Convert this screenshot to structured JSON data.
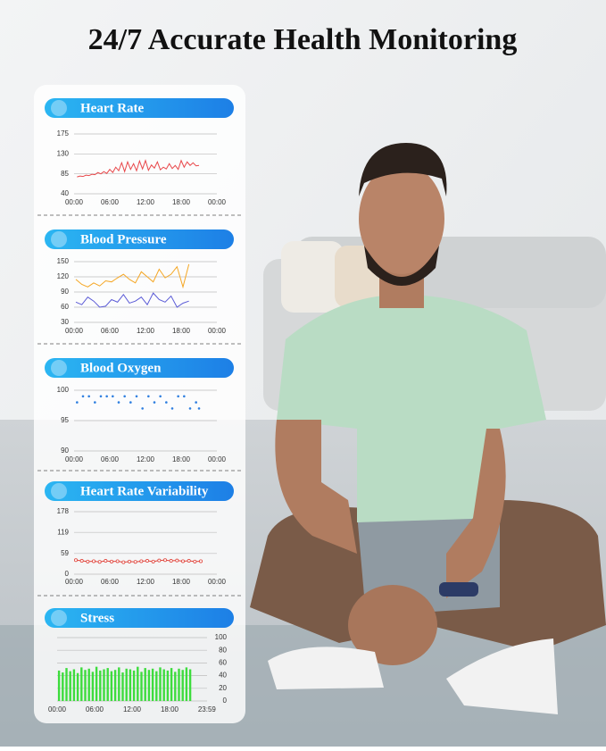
{
  "title": "24/7 Accurate Health Monitoring",
  "chart_data": [
    {
      "type": "line",
      "title": "Heart Rate",
      "xlim": [
        0,
        24
      ],
      "xticks": [
        {
          "value": 0,
          "label": "00:00"
        },
        {
          "value": 6,
          "label": "06:00"
        },
        {
          "value": 12,
          "label": "12:00"
        },
        {
          "value": 18,
          "label": "18:00"
        },
        {
          "value": 24,
          "label": "00:00"
        }
      ],
      "ylim": [
        40,
        175
      ],
      "yticks": [
        40,
        85,
        130,
        175
      ],
      "grid": true,
      "yaxis_side": "left",
      "markers": false,
      "x": [
        0.5,
        1,
        1.5,
        2,
        2.5,
        3,
        3.5,
        4,
        4.5,
        5,
        5.5,
        6,
        6.5,
        7,
        7.5,
        8,
        8.5,
        9,
        9.5,
        10,
        10.5,
        11,
        11.5,
        12,
        12.5,
        13,
        13.5,
        14,
        14.5,
        15,
        15.5,
        16,
        16.5,
        17,
        17.5,
        18,
        18.5,
        19,
        19.5,
        20,
        20.5,
        21
      ],
      "series": [
        {
          "color": "#e8474a",
          "values": [
            78,
            80,
            79,
            82,
            81,
            84,
            83,
            88,
            85,
            90,
            86,
            95,
            88,
            100,
            92,
            110,
            90,
            112,
            95,
            108,
            92,
            114,
            96,
            115,
            93,
            105,
            98,
            112,
            94,
            100,
            96,
            108,
            97,
            104,
            95,
            115,
            100,
            112,
            104,
            110,
            103,
            104
          ]
        }
      ]
    },
    {
      "type": "line",
      "title": "Blood Pressure",
      "xlim": [
        0,
        24
      ],
      "xticks": [
        {
          "value": 0,
          "label": "00:00"
        },
        {
          "value": 6,
          "label": "06:00"
        },
        {
          "value": 12,
          "label": "12:00"
        },
        {
          "value": 18,
          "label": "18:00"
        },
        {
          "value": 24,
          "label": "00:00"
        }
      ],
      "ylim": [
        30,
        150
      ],
      "yticks": [
        30,
        60,
        90,
        120,
        150
      ],
      "grid": true,
      "yaxis_side": "left",
      "markers": false,
      "x": [
        0.3,
        1.3,
        2.3,
        3.3,
        4.3,
        5.3,
        6.3,
        7.3,
        8.3,
        9.3,
        10.3,
        11.3,
        12.3,
        13.3,
        14.3,
        15.3,
        16.3,
        17.3,
        18.3,
        19.3
      ],
      "series": [
        {
          "color": "#f5a623",
          "values": [
            115,
            105,
            100,
            108,
            102,
            112,
            110,
            118,
            125,
            115,
            108,
            130,
            120,
            110,
            135,
            118,
            125,
            140,
            100,
            145
          ]
        },
        {
          "color": "#5b5bd6",
          "values": [
            70,
            65,
            80,
            72,
            60,
            62,
            75,
            70,
            85,
            68,
            72,
            80,
            65,
            88,
            75,
            70,
            82,
            60,
            68,
            72
          ]
        }
      ]
    },
    {
      "type": "scatter",
      "title": "Blood Oxygen",
      "xlim": [
        0,
        24
      ],
      "xticks": [
        {
          "value": 0,
          "label": "00:00"
        },
        {
          "value": 6,
          "label": "06:00"
        },
        {
          "value": 12,
          "label": "12:00"
        },
        {
          "value": 18,
          "label": "18:00"
        },
        {
          "value": 24,
          "label": "00:00"
        }
      ],
      "ylim": [
        90,
        100
      ],
      "yticks": [
        90,
        95,
        100
      ],
      "grid": true,
      "yaxis_side": "left",
      "markers": true,
      "x": [
        0.5,
        1.5,
        2.5,
        3.5,
        4.5,
        5.5,
        6.5,
        7.5,
        8.5,
        9.5,
        10.5,
        11.5,
        12.5,
        13.5,
        14.5,
        15.5,
        16.5,
        17.5,
        18.5,
        19.5,
        20.5,
        21
      ],
      "series": [
        {
          "color": "#2f7fe0",
          "values": [
            98,
            99,
            99,
            98,
            99,
            99,
            99,
            98,
            99,
            98,
            99,
            97,
            99,
            98,
            99,
            98,
            97,
            99,
            99,
            97,
            98,
            97
          ]
        }
      ]
    },
    {
      "type": "line",
      "title": "Heart Rate Variability",
      "xlim": [
        0,
        24
      ],
      "xticks": [
        {
          "value": 0,
          "label": "00:00"
        },
        {
          "value": 6,
          "label": "06:00"
        },
        {
          "value": 12,
          "label": "12:00"
        },
        {
          "value": 18,
          "label": "18:00"
        },
        {
          "value": 24,
          "label": "00:00"
        }
      ],
      "ylim": [
        0,
        178
      ],
      "yticks": [
        0,
        59,
        119,
        178
      ],
      "grid": true,
      "yaxis_side": "left",
      "markers": true,
      "x": [
        0.3,
        1.3,
        2.3,
        3.3,
        4.3,
        5.3,
        6.3,
        7.3,
        8.3,
        9.3,
        10.3,
        11.3,
        12.3,
        13.3,
        14.3,
        15.3,
        16.3,
        17.3,
        18.3,
        19.3,
        20.3,
        21.3
      ],
      "series": [
        {
          "color": "#e0453c",
          "values": [
            40,
            38,
            36,
            37,
            35,
            38,
            36,
            37,
            34,
            36,
            35,
            37,
            38,
            36,
            39,
            40,
            38,
            39,
            37,
            38,
            36,
            37
          ]
        }
      ]
    },
    {
      "type": "bar",
      "title": "Stress",
      "xlim": [
        0,
        24
      ],
      "xticks": [
        {
          "value": 0,
          "label": "00:00"
        },
        {
          "value": 6,
          "label": "06:00"
        },
        {
          "value": 12,
          "label": "12:00"
        },
        {
          "value": 18,
          "label": "18:00"
        },
        {
          "value": 23.98,
          "label": "23:59"
        }
      ],
      "ylim": [
        0,
        100
      ],
      "yticks": [
        0,
        20,
        40,
        60,
        80,
        100
      ],
      "grid": true,
      "yaxis_side": "right",
      "markers": false,
      "x": [
        0.3,
        0.9,
        1.5,
        2.1,
        2.7,
        3.3,
        3.9,
        4.5,
        5.1,
        5.7,
        6.3,
        6.9,
        7.5,
        8.1,
        8.7,
        9.3,
        9.9,
        10.5,
        11.1,
        11.7,
        12.3,
        12.9,
        13.5,
        14.1,
        14.7,
        15.3,
        15.9,
        16.5,
        17.1,
        17.7,
        18.3,
        18.9,
        19.5,
        20.1,
        20.7,
        21.3
      ],
      "series": [
        {
          "color": "#3ddc3d",
          "values": [
            48,
            45,
            52,
            47,
            50,
            44,
            53,
            49,
            51,
            46,
            54,
            48,
            50,
            52,
            47,
            49,
            53,
            45,
            51,
            50,
            48,
            54,
            46,
            52,
            49,
            51,
            47,
            53,
            50,
            48,
            52,
            46,
            51,
            49,
            53,
            50
          ]
        }
      ]
    }
  ]
}
